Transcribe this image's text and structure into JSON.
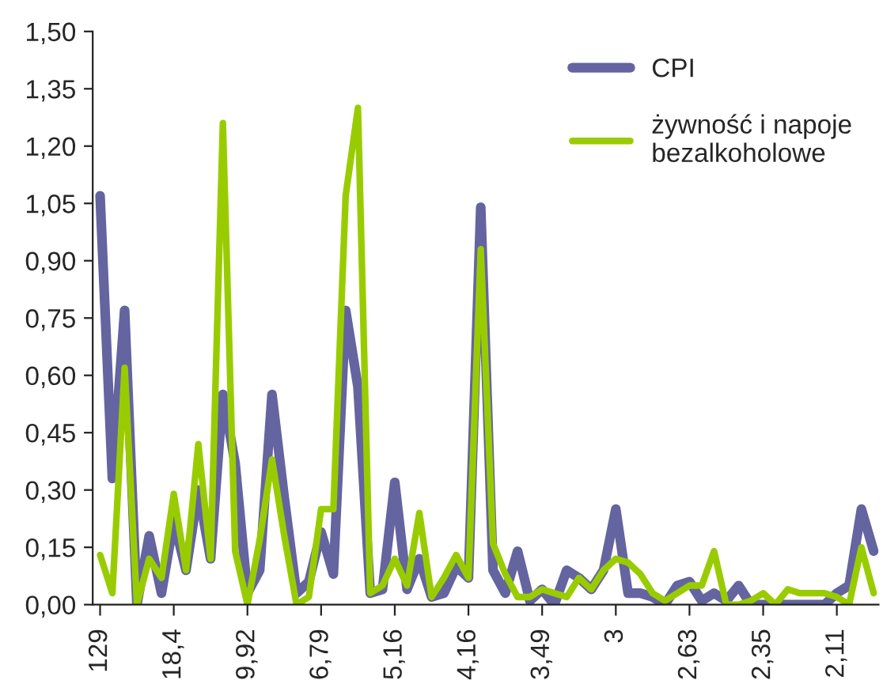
{
  "chart_data": {
    "type": "line",
    "categories": [
      "129",
      null,
      null,
      null,
      null,
      null,
      "18,4",
      null,
      null,
      null,
      null,
      null,
      "9,92",
      null,
      null,
      null,
      null,
      null,
      "6,79",
      null,
      null,
      null,
      null,
      null,
      "5,16",
      null,
      null,
      null,
      null,
      null,
      "4,16",
      null,
      null,
      null,
      null,
      null,
      "3,49",
      null,
      null,
      null,
      null,
      null,
      "3",
      null,
      null,
      null,
      null,
      null,
      "2,63",
      null,
      null,
      null,
      null,
      null,
      "2,35",
      null,
      null,
      null,
      null,
      null,
      "2,11",
      null,
      null,
      null
    ],
    "series": [
      {
        "name": "CPI",
        "color": "#6464a0",
        "values": [
          1.07,
          0.33,
          0.77,
          0.0,
          0.18,
          0.03,
          0.22,
          0.09,
          0.3,
          0.12,
          0.55,
          0.37,
          0.03,
          0.09,
          0.55,
          0.28,
          0.03,
          0.06,
          0.19,
          0.08,
          0.77,
          0.57,
          0.03,
          0.04,
          0.32,
          0.04,
          0.12,
          0.02,
          0.03,
          0.1,
          0.07,
          1.04,
          0.09,
          0.03,
          0.14,
          0.01,
          0.04,
          0.0,
          0.09,
          0.07,
          0.04,
          0.09,
          0.25,
          0.03,
          0.03,
          0.02,
          0.0,
          0.05,
          0.06,
          0.01,
          0.03,
          0.01,
          0.05,
          0.0,
          0.0,
          0.0,
          0.0,
          0.0,
          0.0,
          0.0,
          0.03,
          0.05,
          0.25,
          0.14
        ]
      },
      {
        "name": "żywność i napoje\nbezalkoholowe",
        "color": "#99cc00",
        "values": [
          0.13,
          0.03,
          0.62,
          0.0,
          0.12,
          0.07,
          0.29,
          0.09,
          0.42,
          0.12,
          1.26,
          0.14,
          0.0,
          0.17,
          0.38,
          0.18,
          0.0,
          0.02,
          0.25,
          0.25,
          1.07,
          1.3,
          0.03,
          0.05,
          0.12,
          0.05,
          0.24,
          0.02,
          0.07,
          0.13,
          0.07,
          0.93,
          0.16,
          0.08,
          0.02,
          0.02,
          0.04,
          0.03,
          0.02,
          0.07,
          0.04,
          0.09,
          0.12,
          0.11,
          0.08,
          0.03,
          0.01,
          0.03,
          0.05,
          0.05,
          0.14,
          0.0,
          0.0,
          0.01,
          0.03,
          0.0,
          0.04,
          0.03,
          0.03,
          0.03,
          0.02,
          0.0,
          0.15,
          0.03
        ]
      }
    ],
    "ylim": [
      0,
      1.5
    ],
    "yticks": [
      {
        "value": 0,
        "label": "0,00"
      },
      {
        "value": 0.15,
        "label": "0,15"
      },
      {
        "value": 0.3,
        "label": "0,30"
      },
      {
        "value": 0.45,
        "label": "0,45"
      },
      {
        "value": 0.6,
        "label": "0,60"
      },
      {
        "value": 0.75,
        "label": "0,75"
      },
      {
        "value": 0.9,
        "label": "0,90"
      },
      {
        "value": 1.05,
        "label": "1,05"
      },
      {
        "value": 1.2,
        "label": "1,20"
      },
      {
        "value": 1.35,
        "label": "1,35"
      },
      {
        "value": 1.5,
        "label": "1,50"
      }
    ],
    "legend": "top right",
    "grid": false,
    "line_style": "solid"
  }
}
